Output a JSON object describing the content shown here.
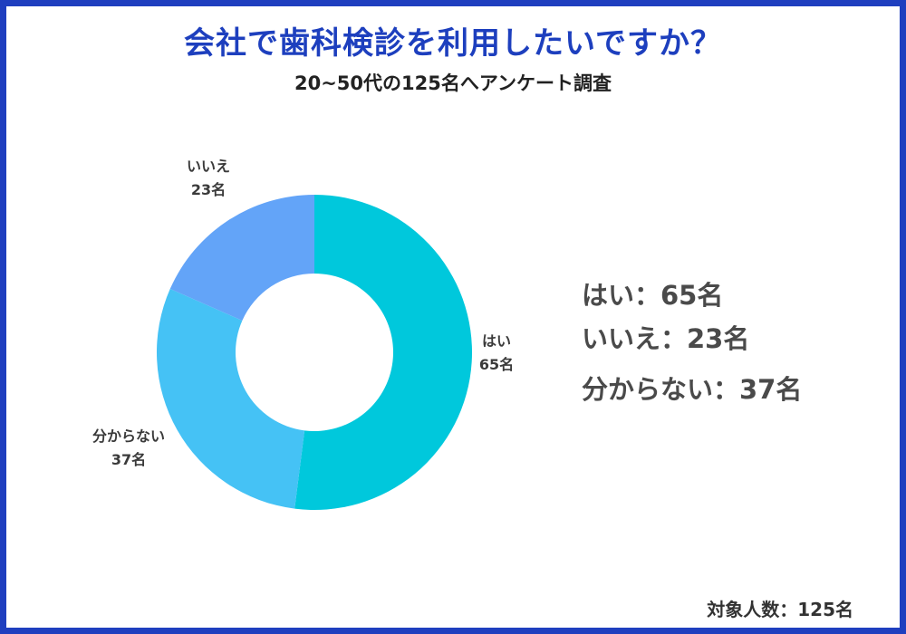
{
  "title": "会社で歯科検診を利用したいですか？",
  "subtitle": "20~50代の125名へアンケート調査",
  "summary": {
    "line_yes": "はい：65名",
    "line_no": "いいえ：23名",
    "line_unknown": "分からない：37名"
  },
  "footer": "対象人数：125名",
  "colors": {
    "frame": "#1f3fbf",
    "title": "#1d3fbe",
    "yes": "#00c8dc",
    "unknown": "#45c2f5",
    "no": "#63a4f8"
  },
  "chart_data": {
    "type": "pie",
    "donut": true,
    "title": "",
    "slices": [
      {
        "name": "はい",
        "value": 65,
        "label_value": "65名",
        "color": "#00c8dc"
      },
      {
        "name": "分からない",
        "value": 37,
        "label_value": "37名",
        "color": "#45c2f5"
      },
      {
        "name": "いいえ",
        "value": 23,
        "label_value": "23名",
        "color": "#63a4f8"
      }
    ],
    "total": 125
  }
}
